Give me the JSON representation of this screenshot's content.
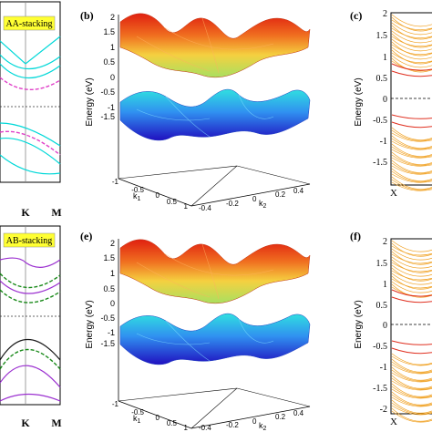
{
  "figure": {
    "panel_labels": {
      "b": "(b)",
      "c": "(c)",
      "e": "(e)",
      "f": "(f)"
    },
    "tags": {
      "aa": "AA-stacking",
      "ab": "AB-stacking"
    },
    "bottom_left_kpoints": [
      "K",
      "M"
    ],
    "top_left_kpoints": [
      "K",
      "M"
    ],
    "surface_plot": {
      "zlabel": "Energy (eV)",
      "z_ticks": [
        "2",
        "1.5",
        "1",
        "0.5",
        "0",
        "-0.5",
        "-1",
        "-1.5"
      ],
      "k1_label": "k",
      "k1_sub": "1",
      "k2_label": "k",
      "k2_sub": "2",
      "k1_ticks": [
        "-1",
        "-0.5",
        "0",
        "0.5",
        "1"
      ],
      "k2_ticks": [
        "-0.4",
        "-0.2",
        "0",
        "0.2",
        "0.4"
      ]
    },
    "ribbon_plot": {
      "ylabel": "Energy (eV)",
      "top_ticks": [
        "2",
        "1.5",
        "1",
        "0.5",
        "0",
        "-0.5",
        "-1",
        "-1.5"
      ],
      "bottom_ticks": [
        "2",
        "1.5",
        "1",
        "0.5",
        "0",
        "-0.5",
        "-1",
        "-1.5",
        "-2"
      ],
      "x_label": "X"
    },
    "colors": {
      "aa_tag_bg": "#ffff33",
      "cyan": "#00e5e5",
      "magenta": "#e040c8",
      "purple": "#9b30d0",
      "green": "#1a8a1a",
      "orange": "#f0a020",
      "red": "#e03020"
    }
  }
}
